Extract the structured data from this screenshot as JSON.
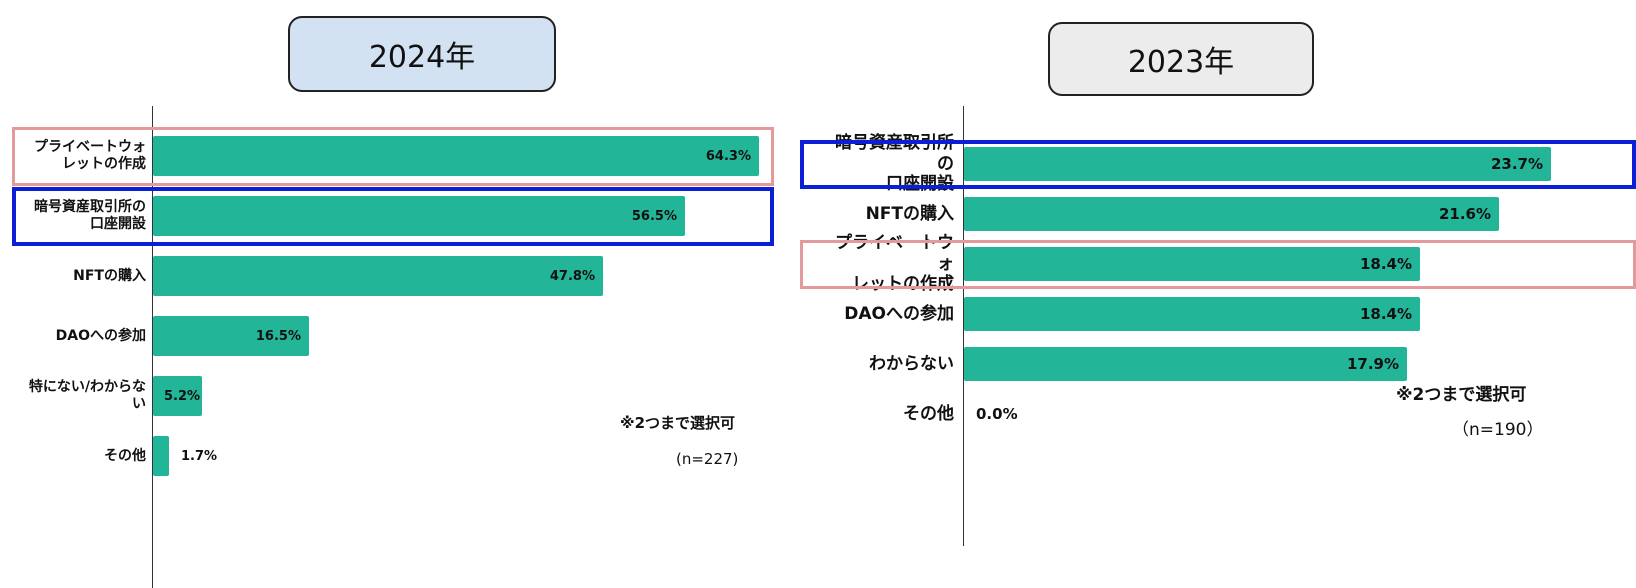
{
  "colors": {
    "bar": "#22b597",
    "highlight_pink": "#e29a9a",
    "highlight_blue": "#0a1fd6",
    "year_box_2024": "#d3e2f3",
    "year_box_2023": "#ececec"
  },
  "chart_data": [
    {
      "type": "bar",
      "orientation": "horizontal",
      "title": "2024年",
      "categories": [
        "プライベートウォレットの作成",
        "暗号資産取引所の口座開設",
        "NFTの購入",
        "DAOへの参加",
        "特にない/わからない",
        "その他"
      ],
      "category_labels": [
        [
          "プライベートウォ",
          "レットの作成"
        ],
        [
          "暗号資産取引所の",
          "口座開設"
        ],
        [
          "NFTの購入"
        ],
        [
          "DAOへの参加"
        ],
        [
          "特にない/わからな",
          "い"
        ],
        [
          "その他"
        ]
      ],
      "values": [
        64.3,
        56.5,
        47.8,
        16.5,
        5.2,
        1.7
      ],
      "value_labels": [
        "64.3%",
        "56.5%",
        "47.8%",
        "16.5%",
        "5.2%",
        "1.7%"
      ],
      "highlights": {
        "pink": 0,
        "blue": 1
      },
      "note": "※2つまで選択可",
      "sample_size": "(n=227)"
    },
    {
      "type": "bar",
      "orientation": "horizontal",
      "title": "2023年",
      "categories": [
        "暗号資産取引所の口座開設",
        "NFTの購入",
        "プライベートウォレットの作成",
        "DAOへの参加",
        "わからない",
        "その他"
      ],
      "category_labels": [
        [
          "暗号資産取引所の",
          "口座開設"
        ],
        [
          "NFTの購入"
        ],
        [
          "プライベートウォ",
          "レットの作成"
        ],
        [
          "DAOへの参加"
        ],
        [
          "わからない"
        ],
        [
          "その他"
        ]
      ],
      "values": [
        23.7,
        21.6,
        18.4,
        18.4,
        17.9,
        0.0
      ],
      "value_labels": [
        "23.7%",
        "21.6%",
        "18.4%",
        "18.4%",
        "17.9%",
        "0.0%"
      ],
      "highlights": {
        "blue": 0,
        "pink": 2
      },
      "note": "※2つまで選択可",
      "sample_size": "（n=190）"
    }
  ]
}
